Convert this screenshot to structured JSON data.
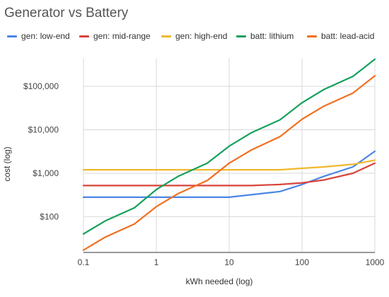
{
  "chart_data": {
    "type": "line",
    "title": "Generator vs Battery",
    "xlabel": "kWh needed (log)",
    "ylabel": "cost (log)",
    "xscale": "log",
    "yscale": "log",
    "xlim": [
      0.1,
      1000
    ],
    "ylim": [
      15,
      450000
    ],
    "xticks": [
      0.1,
      1,
      10,
      100,
      1000
    ],
    "xtick_labels": [
      "0.1",
      "1",
      "10",
      "100",
      "1000"
    ],
    "yticks": [
      100,
      1000,
      10000,
      100000
    ],
    "ytick_labels": [
      "$100",
      "$1,000",
      "$10,000",
      "$100,000"
    ],
    "grid": true,
    "legend_position": "top",
    "series": [
      {
        "name": "gen: low-end",
        "color": "#4a86e8",
        "points": [
          [
            0.1,
            280
          ],
          [
            0.2,
            280
          ],
          [
            0.5,
            280
          ],
          [
            1,
            280
          ],
          [
            2,
            280
          ],
          [
            5,
            280
          ],
          [
            10,
            280
          ],
          [
            20,
            320
          ],
          [
            50,
            380
          ],
          [
            100,
            550
          ],
          [
            200,
            850
          ],
          [
            500,
            1400
          ],
          [
            1000,
            3200
          ]
        ]
      },
      {
        "name": "gen: mid-range",
        "color": "#d9443a",
        "points": [
          [
            0.1,
            520
          ],
          [
            0.2,
            520
          ],
          [
            0.5,
            520
          ],
          [
            1,
            520
          ],
          [
            2,
            520
          ],
          [
            5,
            520
          ],
          [
            10,
            520
          ],
          [
            20,
            520
          ],
          [
            50,
            550
          ],
          [
            100,
            600
          ],
          [
            200,
            700
          ],
          [
            500,
            1000
          ],
          [
            1000,
            1700
          ]
        ]
      },
      {
        "name": "gen: high-end",
        "color": "#f1b82d",
        "points": [
          [
            0.1,
            1200
          ],
          [
            0.2,
            1200
          ],
          [
            0.5,
            1200
          ],
          [
            1,
            1200
          ],
          [
            2,
            1200
          ],
          [
            5,
            1200
          ],
          [
            10,
            1200
          ],
          [
            20,
            1200
          ],
          [
            50,
            1200
          ],
          [
            100,
            1300
          ],
          [
            200,
            1400
          ],
          [
            500,
            1600
          ],
          [
            1000,
            2000
          ]
        ]
      },
      {
        "name": "batt: lithium",
        "color": "#16a05d",
        "points": [
          [
            0.1,
            40
          ],
          [
            0.2,
            80
          ],
          [
            0.5,
            160
          ],
          [
            1,
            420
          ],
          [
            2,
            850
          ],
          [
            5,
            1700
          ],
          [
            10,
            4200
          ],
          [
            20,
            8500
          ],
          [
            50,
            17000
          ],
          [
            100,
            42000
          ],
          [
            200,
            85000
          ],
          [
            500,
            170000
          ],
          [
            1000,
            420000
          ]
        ]
      },
      {
        "name": "batt: lead-acid",
        "color": "#f26f21",
        "points": [
          [
            0.1,
            17
          ],
          [
            0.2,
            34
          ],
          [
            0.5,
            68
          ],
          [
            1,
            170
          ],
          [
            2,
            340
          ],
          [
            5,
            680
          ],
          [
            10,
            1700
          ],
          [
            20,
            3400
          ],
          [
            50,
            7000
          ],
          [
            100,
            17500
          ],
          [
            200,
            35000
          ],
          [
            500,
            70000
          ],
          [
            1000,
            175000
          ]
        ]
      }
    ]
  }
}
